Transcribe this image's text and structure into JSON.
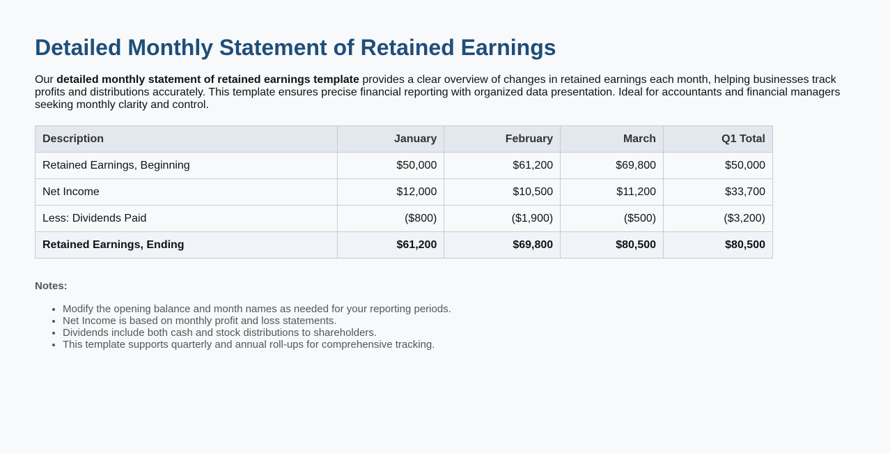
{
  "title": "Detailed Monthly Statement of Retained Earnings",
  "intro": {
    "prefix": "Our ",
    "bold": "detailed monthly statement of retained earnings template",
    "suffix": " provides a clear overview of changes in retained earnings each month, helping businesses track profits and distributions accurately. This template ensures precise financial reporting with organized data presentation. Ideal for accountants and financial managers seeking monthly clarity and control."
  },
  "table": {
    "headers": [
      "Description",
      "January",
      "February",
      "March",
      "Q1 Total"
    ],
    "rows": [
      [
        "Retained Earnings, Beginning",
        "$50,000",
        "$61,200",
        "$69,800",
        "$50,000"
      ],
      [
        "Net Income",
        "$12,000",
        "$10,500",
        "$11,200",
        "$33,700"
      ],
      [
        "Less: Dividends Paid",
        "($800)",
        "($1,900)",
        "($500)",
        "($3,200)"
      ],
      [
        "Retained Earnings, Ending",
        "$61,200",
        "$69,800",
        "$80,500",
        "$80,500"
      ]
    ]
  },
  "notes": {
    "heading": "Notes:",
    "items": [
      "Modify the opening balance and month names as needed for your reporting periods.",
      "Net Income is based on monthly profit and loss statements.",
      "Dividends include both cash and stock distributions to shareholders.",
      "This template supports quarterly and annual roll-ups for comprehensive tracking."
    ]
  }
}
